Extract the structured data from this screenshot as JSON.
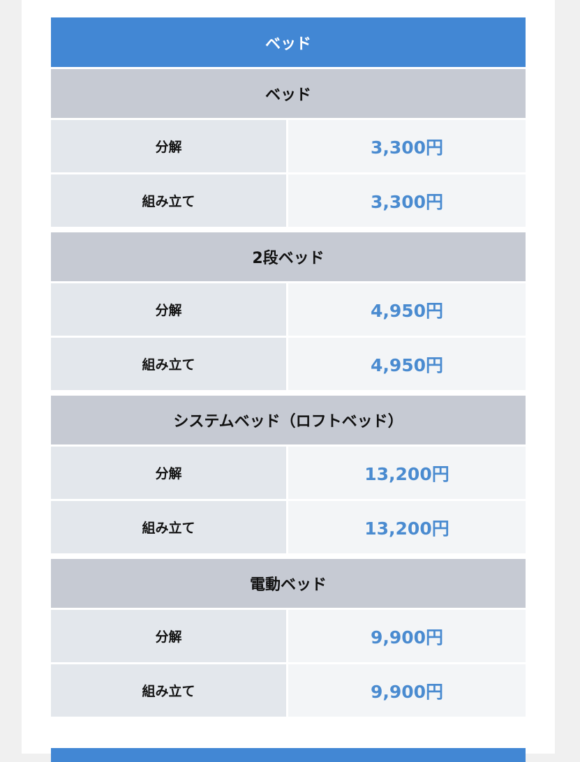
{
  "table": {
    "title": "ベッド",
    "groups": [
      {
        "name": "ベッド",
        "rows": [
          {
            "label": "分解",
            "price": "3,300円"
          },
          {
            "label": "組み立て",
            "price": "3,300円"
          }
        ]
      },
      {
        "name": "2段ベッド",
        "rows": [
          {
            "label": "分解",
            "price": "4,950円"
          },
          {
            "label": "組み立て",
            "price": "4,950円"
          }
        ]
      },
      {
        "name": "システムベッド（ロフトベッド）",
        "rows": [
          {
            "label": "分解",
            "price": "13,200円"
          },
          {
            "label": "組み立て",
            "price": "13,200円"
          }
        ]
      },
      {
        "name": "電動ベッド",
        "rows": [
          {
            "label": "分解",
            "price": "9,900円"
          },
          {
            "label": "組み立て",
            "price": "9,900円"
          }
        ]
      }
    ]
  },
  "colors": {
    "header": "#4287d4",
    "section": "#c6cad3",
    "price": "#4a8bd0"
  }
}
